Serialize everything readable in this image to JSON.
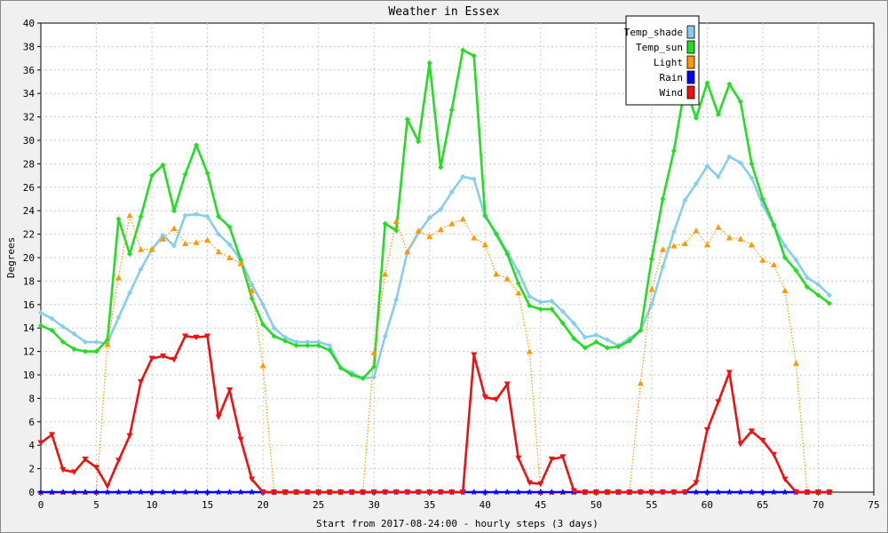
{
  "chart_data": {
    "type": "line",
    "title": "Weather in Essex",
    "xlabel": "Start from 2017-08-24:00 - hourly steps (3 days)",
    "ylabel": "Degrees",
    "xlim": [
      0,
      75
    ],
    "ylim": [
      0,
      40
    ],
    "x_ticks": [
      0,
      5,
      10,
      15,
      20,
      25,
      30,
      35,
      40,
      45,
      50,
      55,
      60,
      65,
      70,
      75
    ],
    "y_ticks": [
      0,
      2,
      4,
      6,
      8,
      10,
      12,
      14,
      16,
      18,
      20,
      22,
      24,
      26,
      28,
      30,
      32,
      34,
      36,
      38,
      40
    ],
    "grid": true,
    "legend_position": "top-right",
    "x": [
      0,
      1,
      2,
      3,
      4,
      5,
      6,
      7,
      8,
      9,
      10,
      11,
      12,
      13,
      14,
      15,
      16,
      17,
      18,
      19,
      20,
      21,
      22,
      23,
      24,
      25,
      26,
      27,
      28,
      29,
      30,
      31,
      32,
      33,
      34,
      35,
      36,
      37,
      38,
      39,
      40,
      41,
      42,
      43,
      44,
      45,
      46,
      47,
      48,
      49,
      50,
      51,
      52,
      53,
      54,
      55,
      56,
      57,
      58,
      59,
      60,
      61,
      62,
      63,
      64,
      65,
      66,
      67,
      68,
      69,
      70,
      71
    ],
    "series": [
      {
        "name": "Temp_shade",
        "color": "#87ceeb",
        "marker": "diamond",
        "line": "solid",
        "values": [
          15.3,
          14.8,
          14.1,
          13.5,
          12.8,
          12.8,
          12.7,
          14.9,
          17.0,
          19.0,
          20.7,
          21.9,
          21.0,
          23.6,
          23.7,
          23.5,
          22.0,
          21.1,
          19.8,
          17.7,
          16.0,
          14.0,
          13.2,
          12.8,
          12.8,
          12.8,
          12.5,
          10.6,
          10.2,
          9.7,
          9.8,
          13.3,
          16.4,
          20.5,
          22.1,
          23.4,
          24.1,
          25.6,
          26.9,
          26.7,
          23.5,
          22.1,
          20.5,
          18.8,
          16.7,
          16.2,
          16.3,
          15.4,
          14.4,
          13.2,
          13.4,
          13.0,
          12.5,
          13.1,
          13.8,
          16.0,
          19.2,
          22.2,
          24.9,
          26.3,
          27.8,
          26.9,
          28.6,
          28.1,
          26.8,
          24.5,
          22.7,
          21.0,
          19.8,
          18.3,
          17.7,
          16.8
        ]
      },
      {
        "name": "Temp_sun",
        "color": "#22dd22",
        "marker": "diamond",
        "line": "solid",
        "values": [
          14.2,
          13.8,
          12.8,
          12.2,
          12.0,
          12.0,
          13.0,
          23.3,
          20.3,
          23.5,
          27.0,
          27.9,
          24.0,
          27.1,
          29.6,
          27.2,
          23.5,
          22.6,
          19.8,
          16.5,
          14.3,
          13.3,
          12.9,
          12.5,
          12.5,
          12.5,
          12.1,
          10.6,
          10.0,
          9.7,
          10.7,
          22.9,
          22.3,
          31.8,
          29.9,
          36.6,
          27.7,
          32.6,
          37.7,
          37.2,
          23.6,
          22.0,
          20.3,
          17.8,
          15.9,
          15.6,
          15.6,
          14.4,
          13.1,
          12.3,
          12.8,
          12.3,
          12.4,
          12.9,
          13.8,
          19.9,
          25.0,
          29.1,
          34.6,
          31.9,
          34.9,
          32.2,
          34.8,
          33.3,
          28.0,
          25.0,
          22.8,
          20.0,
          18.9,
          17.5,
          16.8,
          16.1
        ]
      },
      {
        "name": "Light",
        "color": "#ff9900",
        "marker": "triangle",
        "line": "dotted",
        "values": [
          0,
          0,
          0,
          0,
          0,
          0,
          12.6,
          18.3,
          23.6,
          20.7,
          20.7,
          21.6,
          22.5,
          21.2,
          21.3,
          21.5,
          20.5,
          20.0,
          19.5,
          17.2,
          10.8,
          0,
          0,
          0,
          0,
          0,
          0,
          0,
          0,
          0,
          11.9,
          18.6,
          23.1,
          20.5,
          22.3,
          21.8,
          22.4,
          22.9,
          23.3,
          21.7,
          21.1,
          18.6,
          18.2,
          17.0,
          12.0,
          0,
          0,
          0,
          0,
          0,
          0,
          0,
          0,
          0,
          9.3,
          17.3,
          20.7,
          21.0,
          21.2,
          22.3,
          21.1,
          22.6,
          21.7,
          21.6,
          21.1,
          19.8,
          19.4,
          17.2,
          11.0,
          0,
          0,
          0
        ]
      },
      {
        "name": "Rain",
        "color": "#0000ff",
        "marker": "star",
        "line": "solid",
        "values": [
          0,
          0,
          0,
          0,
          0,
          0,
          0,
          0,
          0,
          0,
          0,
          0,
          0,
          0,
          0,
          0,
          0,
          0,
          0,
          0,
          0,
          0,
          0,
          0,
          0,
          0,
          0,
          0,
          0,
          0,
          0,
          0,
          0,
          0,
          0,
          0,
          0,
          0,
          0,
          0,
          0,
          0,
          0,
          0,
          0,
          0,
          0,
          0,
          0,
          0,
          0,
          0,
          0,
          0,
          0,
          0,
          0,
          0,
          0,
          0,
          0,
          0,
          0,
          0,
          0,
          0,
          0,
          0,
          0,
          0,
          0,
          0
        ]
      },
      {
        "name": "Wind",
        "color": "#ee1111",
        "marker": "triangle-down",
        "line": "solid",
        "values": [
          4.2,
          4.9,
          1.9,
          1.7,
          2.8,
          2.1,
          0.5,
          2.7,
          4.8,
          9.4,
          11.4,
          11.6,
          11.3,
          13.3,
          13.2,
          13.3,
          6.4,
          8.7,
          4.5,
          1.1,
          0,
          0,
          0,
          0,
          0,
          0,
          0,
          0,
          0,
          0,
          0,
          0,
          0,
          0,
          0,
          0,
          0,
          0,
          0,
          11.7,
          8.1,
          7.9,
          9.2,
          2.9,
          0.8,
          0.7,
          2.8,
          3.0,
          0.1,
          0,
          0,
          0,
          0,
          0,
          0,
          0,
          0,
          0,
          0,
          0.8,
          5.3,
          7.7,
          10.2,
          4.1,
          5.2,
          4.4,
          3.2,
          1.1,
          0,
          0,
          0,
          0
        ]
      }
    ]
  }
}
